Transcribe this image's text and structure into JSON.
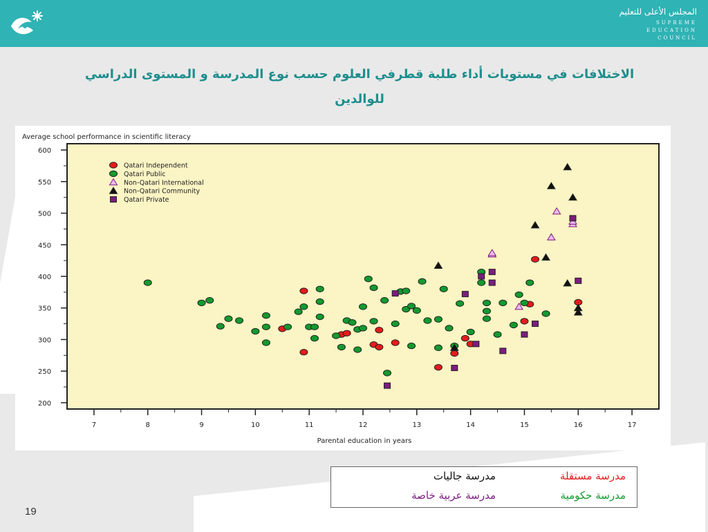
{
  "header": {
    "council_ar": "المجلس الأعلى للتعليم",
    "council_en": [
      "SUPREME",
      "EDUCATION",
      "COUNCIL"
    ],
    "logo_icon": "council-logo-icon",
    "background_color": "#2fb3b5"
  },
  "slide": {
    "title_line1": "الاختلافات في مستويات أداء طلبة قطرفي العلوم حسب  نوع المدرسة و المستوى الدراسي",
    "title_line2": "للوالدين",
    "page_number": "19"
  },
  "school_legend": {
    "independent": {
      "label": "مدرسة مستقلة",
      "color": "#e41b1b"
    },
    "community": {
      "label": "مدرسة جاليات",
      "color": "#111111"
    },
    "public": {
      "label": "مدرسة حكومية",
      "color": "#139a2e"
    },
    "private": {
      "label": "مدرسة عربية خاصة",
      "color": "#7b1d7e"
    }
  },
  "chart_data": {
    "type": "scatter",
    "ylabel": "Average school performance in scientific literacy",
    "xlabel": "Parental education in years",
    "xlim": [
      6.5,
      17.5
    ],
    "ylim": [
      190,
      610
    ],
    "x_ticks": [
      7,
      8,
      9,
      10,
      11,
      12,
      13,
      14,
      15,
      16,
      17
    ],
    "y_ticks": [
      200,
      250,
      300,
      350,
      400,
      450,
      500,
      550,
      600
    ],
    "plot_background": "#fbf4c4",
    "grid": false,
    "legend_position": "top-left",
    "series": [
      {
        "name": "Qatari Independent",
        "marker": "circle",
        "fill": "#e41b1b",
        "points": [
          [
            10.5,
            317
          ],
          [
            10.9,
            377
          ],
          [
            10.9,
            280
          ],
          [
            11.6,
            308
          ],
          [
            11.7,
            310
          ],
          [
            12.2,
            292
          ],
          [
            12.3,
            288
          ],
          [
            12.3,
            315
          ],
          [
            12.6,
            295
          ],
          [
            13.4,
            256
          ],
          [
            13.7,
            278
          ],
          [
            13.9,
            302
          ],
          [
            14.0,
            293
          ],
          [
            15.0,
            329
          ],
          [
            15.1,
            356
          ],
          [
            15.2,
            427
          ],
          [
            16.0,
            359
          ]
        ]
      },
      {
        "name": "Qatari Public",
        "marker": "circle",
        "fill": "#139a2e",
        "points": [
          [
            8.0,
            390
          ],
          [
            9.0,
            358
          ],
          [
            9.15,
            362
          ],
          [
            9.35,
            321
          ],
          [
            9.5,
            333
          ],
          [
            9.7,
            330
          ],
          [
            10.0,
            313
          ],
          [
            10.2,
            338
          ],
          [
            10.2,
            320
          ],
          [
            10.2,
            295
          ],
          [
            10.6,
            320
          ],
          [
            10.8,
            344
          ],
          [
            10.9,
            352
          ],
          [
            11.0,
            320
          ],
          [
            11.1,
            320
          ],
          [
            11.1,
            302
          ],
          [
            11.2,
            360
          ],
          [
            11.2,
            380
          ],
          [
            11.2,
            336
          ],
          [
            11.5,
            306
          ],
          [
            11.6,
            288
          ],
          [
            11.7,
            330
          ],
          [
            11.8,
            327
          ],
          [
            11.9,
            316
          ],
          [
            11.9,
            284
          ],
          [
            12.0,
            352
          ],
          [
            12.0,
            318
          ],
          [
            12.1,
            396
          ],
          [
            12.2,
            382
          ],
          [
            12.2,
            329
          ],
          [
            12.4,
            362
          ],
          [
            12.45,
            247
          ],
          [
            12.6,
            325
          ],
          [
            12.7,
            376
          ],
          [
            12.8,
            348
          ],
          [
            12.8,
            377
          ],
          [
            12.9,
            353
          ],
          [
            12.9,
            290
          ],
          [
            13.0,
            346
          ],
          [
            13.1,
            392
          ],
          [
            13.2,
            330
          ],
          [
            13.4,
            287
          ],
          [
            13.4,
            332
          ],
          [
            13.5,
            380
          ],
          [
            13.6,
            318
          ],
          [
            13.7,
            290
          ],
          [
            13.8,
            357
          ],
          [
            14.0,
            312
          ],
          [
            14.2,
            407
          ],
          [
            14.2,
            390
          ],
          [
            14.3,
            345
          ],
          [
            14.3,
            358
          ],
          [
            14.3,
            333
          ],
          [
            14.5,
            308
          ],
          [
            14.6,
            358
          ],
          [
            14.8,
            323
          ],
          [
            14.9,
            371
          ],
          [
            15.0,
            358
          ],
          [
            15.1,
            390
          ],
          [
            15.4,
            341
          ]
        ]
      },
      {
        "name": "Non-Qatari International",
        "marker": "triangle-up",
        "fill": "#f0b8ee",
        "stroke": "#7b1d7e",
        "points": [
          [
            14.4,
            435
          ],
          [
            14.4,
            437
          ],
          [
            14.9,
            352
          ],
          [
            15.5,
            462
          ],
          [
            15.6,
            503
          ],
          [
            15.9,
            483
          ],
          [
            15.9,
            487
          ]
        ]
      },
      {
        "name": "Non-Qatari Community",
        "marker": "triangle-up",
        "fill": "#111111",
        "points": [
          [
            13.4,
            417
          ],
          [
            13.7,
            287
          ],
          [
            15.2,
            481
          ],
          [
            15.4,
            430
          ],
          [
            15.5,
            543
          ],
          [
            15.8,
            573
          ],
          [
            15.8,
            389
          ],
          [
            15.9,
            525
          ],
          [
            16.0,
            350
          ],
          [
            16.0,
            343
          ]
        ]
      },
      {
        "name": "Qatari Private",
        "marker": "square",
        "fill": "#7b1d7e",
        "points": [
          [
            12.45,
            227
          ],
          [
            12.6,
            373
          ],
          [
            13.7,
            255
          ],
          [
            13.9,
            372
          ],
          [
            14.1,
            293
          ],
          [
            14.2,
            400
          ],
          [
            14.4,
            407
          ],
          [
            14.4,
            390
          ],
          [
            14.6,
            282
          ],
          [
            15.0,
            308
          ],
          [
            15.2,
            325
          ],
          [
            15.9,
            492
          ],
          [
            16.0,
            393
          ]
        ]
      }
    ]
  }
}
